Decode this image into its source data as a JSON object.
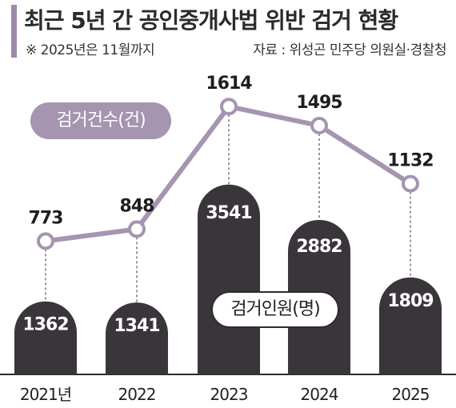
{
  "header": {
    "title": "최근 5년 간 공인중개사법 위반 검거 현황",
    "note": "※ 2025년은 11월까지",
    "source": "자료 : 위성곤 민주당 의원실·경찰청"
  },
  "chart_data": {
    "type": "bar",
    "categories": [
      "2021년",
      "2022",
      "2023",
      "2024",
      "2025"
    ],
    "series": [
      {
        "name": "검거건수(건)",
        "type": "line",
        "values": [
          773,
          848,
          1614,
          1495,
          1132
        ]
      },
      {
        "name": "검거인원(명)",
        "type": "bar",
        "values": [
          1362,
          1341,
          3541,
          2882,
          1809
        ]
      }
    ],
    "legend": [
      "검거건수(건)",
      "검거인원(명)"
    ],
    "colors": {
      "line": "#a595b0",
      "bar": "#3a353b",
      "marker_fill": "#ffffff"
    }
  }
}
